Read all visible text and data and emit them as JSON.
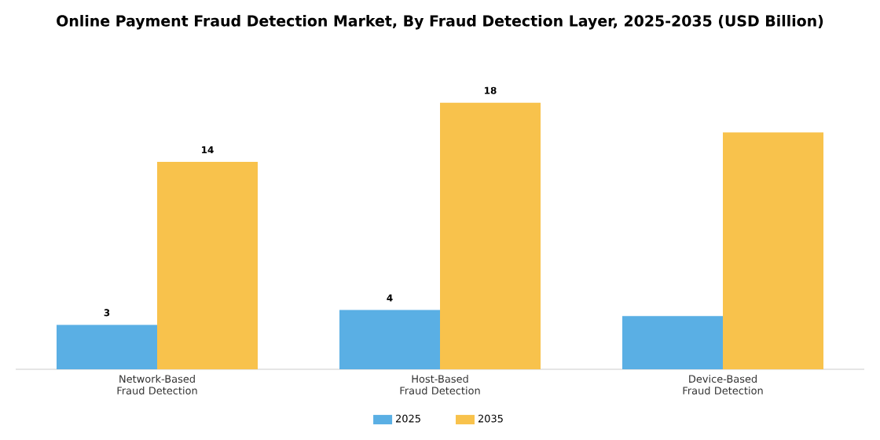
{
  "chart_data": {
    "type": "bar",
    "title": "Online Payment Fraud Detection Market, By Fraud Detection Layer, 2025-2035 (USD Billion)",
    "categories": [
      "Network-Based Fraud Detection",
      "Host-Based Fraud Detection",
      "Device-Based Fraud Detection"
    ],
    "series": [
      {
        "name": "2025",
        "color": "#5aafe4",
        "values": [
          3,
          4,
          3.6
        ],
        "value_labels": [
          "3",
          "4",
          null
        ]
      },
      {
        "name": "2035",
        "color": "#f8c24c",
        "values": [
          14,
          18,
          16
        ],
        "value_labels": [
          "14",
          "18",
          null
        ]
      }
    ],
    "legend": "bottom"
  }
}
